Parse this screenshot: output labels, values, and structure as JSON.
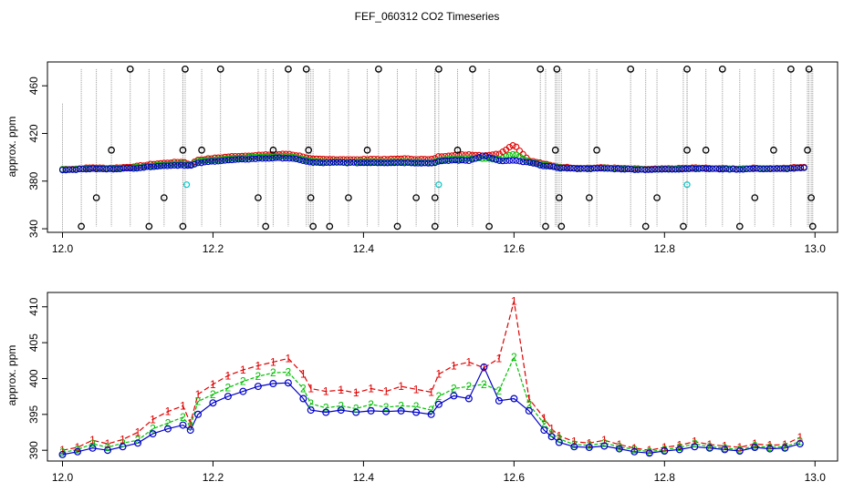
{
  "title": "FEF_060312  CO2 Timeseries",
  "colors": {
    "series1": "#e00000",
    "series2": "#00c000",
    "series3": "#0000c8",
    "outlier": "#000000",
    "flag": "#00c8c8",
    "drop": "#9a9a9a"
  },
  "chart_data": [
    {
      "type": "scatter",
      "title": "FEF_060312  CO2 Timeseries",
      "xlabel": "",
      "ylabel": "approx. ppm",
      "xlim": [
        11.98,
        13.03
      ],
      "ylim": [
        337,
        480
      ],
      "xticks": [
        "12.0",
        "12.2",
        "12.4",
        "12.6",
        "12.8",
        "13.0"
      ],
      "yticks": [
        "340",
        "380",
        "420",
        "460"
      ],
      "series": [
        {
          "name": "1",
          "symbol": "o",
          "values": "estimated dense record (~396 ppm plateau with drift)"
        },
        {
          "name": "2",
          "symbol": "o",
          "values": "estimated dense record"
        },
        {
          "name": "3",
          "symbol": "o",
          "values": "estimated dense record"
        }
      ],
      "outliers_high": [
        12.09,
        12.163,
        12.21,
        12.3,
        12.324,
        12.42,
        12.5,
        12.545,
        12.635,
        12.657,
        12.755,
        12.83,
        12.877,
        12.968,
        12.992
      ],
      "outliers_low": [
        12.025,
        12.115,
        12.16,
        12.27,
        12.333,
        12.355,
        12.445,
        12.495,
        12.567,
        12.642,
        12.663,
        12.775,
        12.825,
        12.9,
        12.997
      ],
      "outliers_mid_high": [
        12.065,
        12.16,
        12.185,
        12.28,
        12.327,
        12.405,
        12.525,
        12.655,
        12.71,
        12.83,
        12.855,
        12.945,
        12.99
      ],
      "outliers_mid_low": [
        12.045,
        12.135,
        12.26,
        12.33,
        12.38,
        12.47,
        12.495,
        12.66,
        12.7,
        12.79,
        12.92,
        12.995
      ],
      "flag_points": [
        {
          "x": 12.165,
          "y": 377
        },
        {
          "x": 12.5,
          "y": 377
        },
        {
          "x": 12.83,
          "y": 377
        }
      ]
    },
    {
      "type": "line",
      "title": "",
      "xlabel": "",
      "ylabel": "approx. ppm",
      "xlim": [
        11.98,
        13.03
      ],
      "ylim": [
        388.5,
        412
      ],
      "xticks": [
        "12.0",
        "12.2",
        "12.4",
        "12.6",
        "12.8",
        "13.0"
      ],
      "yticks": [
        "390",
        "395",
        "400",
        "405",
        "410"
      ],
      "x": [
        12.0,
        12.02,
        12.04,
        12.06,
        12.08,
        12.1,
        12.12,
        12.14,
        12.16,
        12.17,
        12.18,
        12.2,
        12.22,
        12.24,
        12.26,
        12.28,
        12.3,
        12.32,
        12.33,
        12.35,
        12.37,
        12.39,
        12.41,
        12.43,
        12.45,
        12.47,
        12.49,
        12.5,
        12.52,
        12.54,
        12.56,
        12.58,
        12.6,
        12.62,
        12.64,
        12.65,
        12.66,
        12.68,
        12.7,
        12.72,
        12.74,
        12.76,
        12.78,
        12.8,
        12.82,
        12.84,
        12.86,
        12.88,
        12.9,
        12.92,
        12.94,
        12.96,
        12.98
      ],
      "series": [
        {
          "name": "1",
          "values": [
            390.0,
            390.4,
            391.4,
            390.9,
            391.5,
            392.5,
            394.3,
            395.4,
            396.2,
            393.8,
            397.8,
            399.2,
            400.4,
            401.2,
            401.8,
            402.3,
            402.8,
            400.6,
            398.6,
            398.2,
            398.4,
            398.0,
            398.6,
            398.2,
            398.9,
            398.5,
            398.1,
            400.6,
            401.8,
            402.3,
            401.5,
            402.8,
            410.8,
            397.2,
            394.5,
            393.0,
            392.0,
            391.2,
            391.0,
            391.4,
            390.8,
            390.3,
            390.0,
            390.4,
            390.7,
            391.2,
            390.8,
            390.6,
            390.4,
            390.9,
            390.7,
            390.8,
            391.8
          ]
        },
        {
          "name": "2",
          "values": [
            389.7,
            390.1,
            390.9,
            390.4,
            391.0,
            391.4,
            393.0,
            393.8,
            394.6,
            393.3,
            396.8,
            397.8,
            398.7,
            399.6,
            400.3,
            400.8,
            400.9,
            398.6,
            396.5,
            395.9,
            396.2,
            395.8,
            396.4,
            396.0,
            396.2,
            396.1,
            395.6,
            397.5,
            398.6,
            398.9,
            399.2,
            398.3,
            403.0,
            396.4,
            393.7,
            392.4,
            391.6,
            390.8,
            390.7,
            391.0,
            390.5,
            390.1,
            389.8,
            390.1,
            390.4,
            390.9,
            390.5,
            390.3,
            390.1,
            390.6,
            390.4,
            390.5,
            391.2
          ]
        },
        {
          "name": "3",
          "values": [
            389.4,
            389.8,
            390.3,
            390.0,
            390.5,
            391.0,
            392.3,
            393.0,
            393.5,
            392.8,
            395.0,
            396.6,
            397.5,
            398.2,
            398.9,
            399.3,
            399.4,
            397.2,
            395.6,
            395.3,
            395.6,
            395.3,
            395.5,
            395.4,
            395.5,
            395.3,
            395.0,
            396.4,
            397.6,
            397.2,
            401.6,
            396.9,
            397.2,
            395.5,
            392.8,
            391.9,
            391.1,
            390.5,
            390.4,
            390.6,
            390.2,
            389.8,
            389.6,
            389.9,
            390.1,
            390.5,
            390.3,
            390.1,
            389.9,
            390.4,
            390.2,
            390.3,
            390.9
          ]
        }
      ]
    }
  ]
}
